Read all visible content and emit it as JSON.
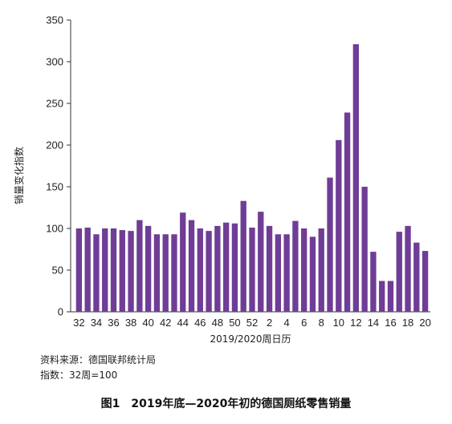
{
  "chart_data": {
    "type": "bar",
    "categories": [
      "32",
      "33",
      "34",
      "35",
      "36",
      "37",
      "38",
      "39",
      "40",
      "41",
      "42",
      "43",
      "44",
      "45",
      "46",
      "47",
      "48",
      "49",
      "50",
      "51",
      "52",
      "1",
      "2",
      "3",
      "4",
      "5",
      "6",
      "7",
      "8",
      "9",
      "10",
      "11",
      "12",
      "13",
      "14",
      "15",
      "16",
      "17",
      "18",
      "19",
      "20"
    ],
    "tick_labels": [
      "32",
      "",
      "34",
      "",
      "36",
      "",
      "38",
      "",
      "40",
      "",
      "42",
      "",
      "44",
      "",
      "46",
      "",
      "48",
      "",
      "50",
      "",
      "52",
      "",
      "2",
      "",
      "4",
      "",
      "6",
      "",
      "8",
      "",
      "10",
      "",
      "12",
      "",
      "14",
      "",
      "16",
      "",
      "18",
      "",
      "20"
    ],
    "values": [
      100,
      101,
      93,
      100,
      100,
      98,
      97,
      110,
      103,
      93,
      93,
      93,
      119,
      110,
      100,
      97,
      103,
      107,
      106,
      133,
      101,
      120,
      103,
      93,
      93,
      109,
      100,
      90,
      100,
      161,
      206,
      239,
      321,
      150,
      72,
      37,
      37,
      96,
      103,
      83,
      73
    ],
    "ylim": [
      0,
      350
    ],
    "yticks": [
      0,
      50,
      100,
      150,
      200,
      250,
      300,
      350
    ],
    "xlabel": "2019/2020周日历",
    "ylabel": "销量变化指数",
    "bar_color": "#6f3d96",
    "grid": false
  },
  "notes": {
    "source": "资料来源：德国联邦统计局",
    "index": "指数：32周=100"
  },
  "caption": "图1　2019年底—2020年初的德国厕纸零售销量"
}
